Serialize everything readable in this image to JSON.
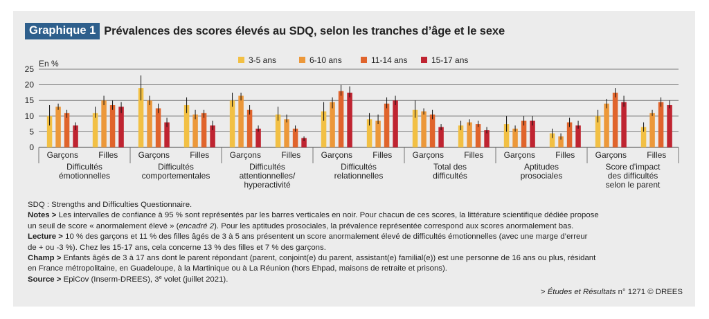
{
  "header": {
    "badge": "Graphique 1",
    "title": "Prévalences des scores élevés au SDQ, selon les tranches d’âge et le sexe"
  },
  "chart_data": {
    "type": "bar",
    "ylabel": "En %",
    "ylim": [
      0,
      25
    ],
    "yticks": [
      0,
      5,
      10,
      15,
      20,
      25
    ],
    "grid": true,
    "legend_position": "top",
    "colors": [
      "#f2c044",
      "#ec983a",
      "#e0642c",
      "#bf2431"
    ],
    "series_names": [
      "3-5 ans",
      "6-10 ans",
      "11-14 ans",
      "15-17 ans"
    ],
    "groups": [
      {
        "label": [
          "Difficultés",
          "émotionnelles"
        ],
        "subgroups": [
          {
            "label": "Garçons",
            "values": [
              10,
              13,
              11,
              7
            ],
            "ci_low": [
              7,
              12,
              9.5,
              5.5
            ],
            "ci_high": [
              13.5,
              14,
              12,
              8
            ]
          },
          {
            "label": "Filles",
            "values": [
              11,
              15,
              13.5,
              13
            ],
            "ci_low": [
              9.5,
              13.5,
              12,
              11
            ],
            "ci_high": [
              13,
              16.5,
              15,
              14.5
            ]
          }
        ]
      },
      {
        "label": [
          "Difficultés",
          "comportementales"
        ],
        "subgroups": [
          {
            "label": "Garçons",
            "values": [
              19,
              15,
              12.5,
              8
            ],
            "ci_low": [
              15,
              13.5,
              11,
              6.5
            ],
            "ci_high": [
              23,
              16.5,
              14,
              9.5
            ]
          },
          {
            "label": "Filles",
            "values": [
              13.5,
              10.5,
              11,
              7
            ],
            "ci_low": [
              11,
              9,
              9.5,
              5.5
            ],
            "ci_high": [
              16,
              12,
              12,
              8.5
            ]
          }
        ]
      },
      {
        "label": [
          "Difficultés",
          "attentionnelles/",
          "hyperactivité"
        ],
        "subgroups": [
          {
            "label": "Garçons",
            "values": [
              15,
              16.5,
              12,
              6
            ],
            "ci_low": [
              13,
              15,
              10.5,
              5
            ],
            "ci_high": [
              17.5,
              17.5,
              13.5,
              7
            ]
          },
          {
            "label": "Filles",
            "values": [
              10.5,
              9,
              6,
              3
            ],
            "ci_low": [
              8.5,
              8,
              5,
              2
            ],
            "ci_high": [
              13,
              10.5,
              7,
              3.5
            ]
          }
        ]
      },
      {
        "label": [
          "Difficultés",
          "relationnelles"
        ],
        "subgroups": [
          {
            "label": "Garçons",
            "values": [
              11.5,
              14.5,
              18,
              17.5
            ],
            "ci_low": [
              8.5,
              12.5,
              16.5,
              16
            ],
            "ci_high": [
              14.5,
              16,
              20,
              19.5
            ]
          },
          {
            "label": "Filles",
            "values": [
              9,
              8.5,
              14,
              15
            ],
            "ci_low": [
              7,
              7.5,
              12.5,
              13.5
            ],
            "ci_high": [
              11,
              10.5,
              16,
              16.5
            ]
          }
        ]
      },
      {
        "label": [
          "Total des",
          "difficultés"
        ],
        "subgroups": [
          {
            "label": "Garçons",
            "values": [
              12,
              11.5,
              10.5,
              6.5
            ],
            "ci_low": [
              9.5,
              10.5,
              9,
              5.5
            ],
            "ci_high": [
              15,
              12.5,
              12,
              7.5
            ]
          },
          {
            "label": "Filles",
            "values": [
              7,
              8,
              7.5,
              5.5
            ],
            "ci_low": [
              5.5,
              7,
              6.5,
              4.5
            ],
            "ci_high": [
              8.5,
              9,
              8.5,
              6.5
            ]
          }
        ]
      },
      {
        "label": [
          "Aptitudes",
          "prosociales"
        ],
        "subgroups": [
          {
            "label": "Garçons",
            "values": [
              7.5,
              6,
              8.5,
              8.5
            ],
            "ci_low": [
              5,
              5,
              7,
              7
            ],
            "ci_high": [
              10,
              7,
              10,
              10
            ]
          },
          {
            "label": "Filles",
            "values": [
              4.5,
              3.5,
              8,
              7
            ],
            "ci_low": [
              3,
              2.5,
              6.5,
              6
            ],
            "ci_high": [
              6,
              4.5,
              9.5,
              8.5
            ]
          }
        ]
      },
      {
        "label": [
          "Score d'impact",
          "des difficultés",
          "selon le parent"
        ],
        "subgroups": [
          {
            "label": "Garçons",
            "values": [
              10,
              14,
              17.5,
              14.5
            ],
            "ci_low": [
              8,
              12.5,
              16,
              13
            ],
            "ci_high": [
              12,
              15.5,
              19,
              16.5
            ]
          },
          {
            "label": "Filles",
            "values": [
              6.5,
              11,
              14.5,
              13.5
            ],
            "ci_low": [
              5,
              10,
              13,
              12.5
            ],
            "ci_high": [
              8,
              12,
              16,
              15
            ]
          }
        ]
      }
    ]
  },
  "notes": {
    "sdq": "SDQ : Strengths and Difficulties Questionnaire.",
    "notes_label": "Notes >",
    "notes_text_1": " Les intervalles de confiance à 95 % sont représentés par les barres verticales en noir. Pour chacun de ces scores, la littérature scientifique dédiée propose",
    "notes_text_2a": "un seuil de score « anormalement élevé » (",
    "notes_text_2_italic": "encadré 2",
    "notes_text_2b": "). Pour les aptitudes prosociales, la prévalence représentée correspond aux scores anormalement bas.",
    "lecture_label": "Lecture >",
    "lecture_text_1": " 10 % des garçons et 11 % des filles âgés de 3 à 5 ans présentent un score anormalement élevé de difficultés émotionnelles (avec une marge d’erreur",
    "lecture_text_2": "de + ou -3 %). Chez les 15-17 ans, cela concerne 13 % des filles et 7 % des garçons.",
    "champ_label": "Champ >",
    "champ_text_1": " Enfants âgés de 3 à 17 ans dont le parent répondant (parent, conjoint(e) du parent, assistant(e) familial(e)) est une personne de 16 ans ou plus, résidant",
    "champ_text_2": "en France métropolitaine, en Guadeloupe, à la Martinique ou à La Réunion (hors Ehpad, maisons de retraite et prisons).",
    "source_label": "Source >",
    "source_text_a": " EpiCov (Inserm-DREES), 3",
    "source_sup": "e",
    "source_text_b": " volet (juillet 2021)."
  },
  "credit": {
    "prefix": "> ",
    "italic": "Études et Résultats",
    "suffix": " n° 1271 © DREES"
  }
}
